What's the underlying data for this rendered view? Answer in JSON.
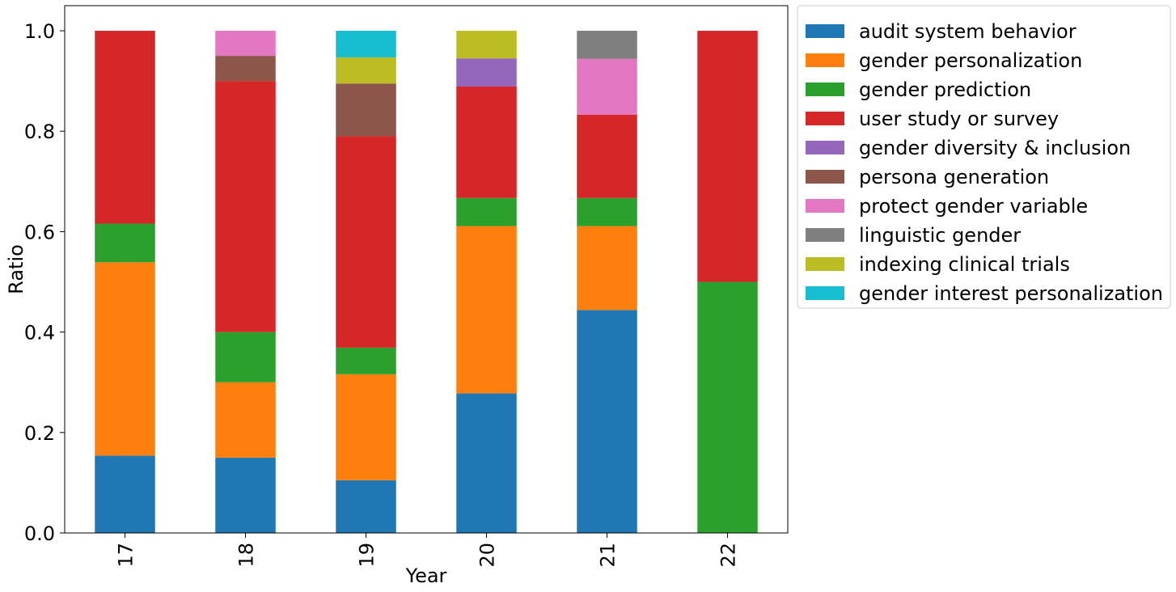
{
  "chart_data": {
    "type": "bar",
    "stacked": true,
    "xlabel": "Year",
    "ylabel": "Ratio",
    "ylim": [
      0,
      1.05
    ],
    "yticks": [
      "0.0",
      "0.2",
      "0.4",
      "0.6",
      "0.8",
      "1.0"
    ],
    "categories": [
      "17",
      "18",
      "19",
      "20",
      "21",
      "22"
    ],
    "legend_position": "outside-top-right",
    "grid": false,
    "series": [
      {
        "name": "audit system behavior",
        "color": "#1f77b4",
        "values": [
          0.154,
          0.15,
          0.105,
          0.278,
          0.444,
          0.0
        ]
      },
      {
        "name": "gender personalization",
        "color": "#ff7f0e",
        "values": [
          0.385,
          0.15,
          0.211,
          0.333,
          0.167,
          0.0
        ]
      },
      {
        "name": "gender prediction",
        "color": "#2ca02c",
        "values": [
          0.077,
          0.1,
          0.053,
          0.056,
          0.056,
          0.5
        ]
      },
      {
        "name": "user study or survey",
        "color": "#d62728",
        "values": [
          0.384,
          0.5,
          0.421,
          0.222,
          0.166,
          0.5
        ]
      },
      {
        "name": "gender diversity & inclusion",
        "color": "#9467bd",
        "values": [
          0.0,
          0.0,
          0.0,
          0.056,
          0.0,
          0.0
        ]
      },
      {
        "name": "persona generation",
        "color": "#8c564b",
        "values": [
          0.0,
          0.05,
          0.105,
          0.0,
          0.0,
          0.0
        ]
      },
      {
        "name": "protect gender variable",
        "color": "#e377c2",
        "values": [
          0.0,
          0.05,
          0.0,
          0.0,
          0.111,
          0.0
        ]
      },
      {
        "name": "linguistic gender",
        "color": "#7f7f7f",
        "values": [
          0.0,
          0.0,
          0.0,
          0.0,
          0.056,
          0.0
        ]
      },
      {
        "name": "indexing clinical trials",
        "color": "#bcbd22",
        "values": [
          0.0,
          0.0,
          0.052,
          0.055,
          0.0,
          0.0
        ]
      },
      {
        "name": "gender interest personalization",
        "color": "#17becf",
        "values": [
          0.0,
          0.0,
          0.053,
          0.0,
          0.0,
          0.0
        ]
      }
    ]
  }
}
